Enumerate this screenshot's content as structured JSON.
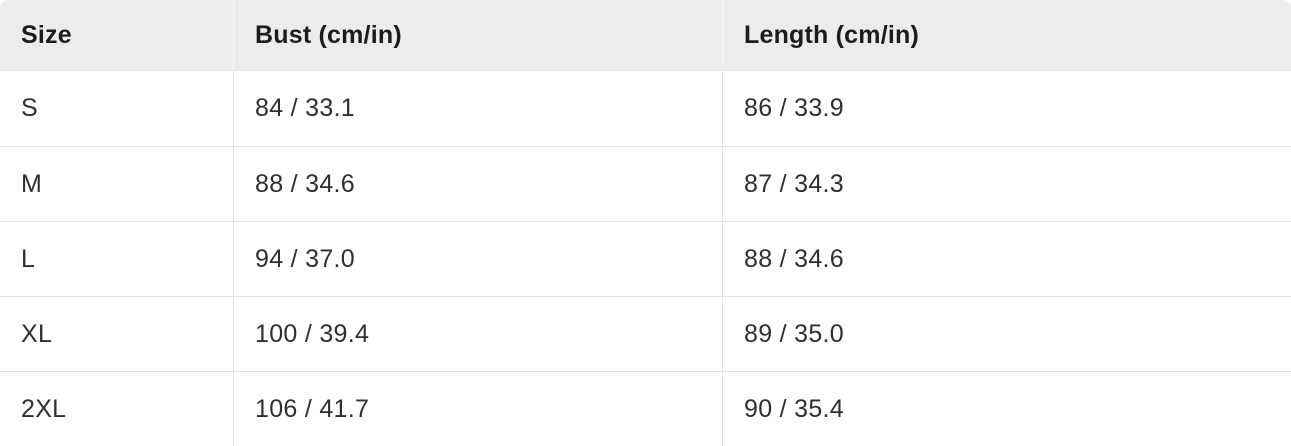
{
  "chart_data": {
    "type": "table",
    "columns": [
      "Size",
      "Bust (cm/in)",
      "Length (cm/in)"
    ],
    "rows": [
      [
        "S",
        "84 / 33.1",
        "86 / 33.9"
      ],
      [
        "M",
        "88 / 34.6",
        "87 / 34.3"
      ],
      [
        "L",
        "94 / 37.0",
        "88 / 34.6"
      ],
      [
        "XL",
        "100 / 39.4",
        "89 / 35.0"
      ],
      [
        "2XL",
        "106 / 41.7",
        "90 / 35.4"
      ]
    ],
    "categories": [
      "S",
      "M",
      "L",
      "XL",
      "2XL"
    ],
    "series": [
      {
        "name": "Bust (cm)",
        "values": [
          84,
          88,
          94,
          100,
          106
        ]
      },
      {
        "name": "Bust (in)",
        "values": [
          33.1,
          34.6,
          37.0,
          39.4,
          41.7
        ]
      },
      {
        "name": "Length (cm)",
        "values": [
          86,
          87,
          88,
          89,
          90
        ]
      },
      {
        "name": "Length (in)",
        "values": [
          33.9,
          34.3,
          34.6,
          35.0,
          35.4
        ]
      }
    ]
  },
  "colors": {
    "header_background": "#ececec",
    "row_background": "#ffffff",
    "row_divider": "#e1e1e1",
    "header_divider": "#f7f7f7",
    "header_text": "#1c1c1c",
    "body_text": "#2f2f2f"
  }
}
